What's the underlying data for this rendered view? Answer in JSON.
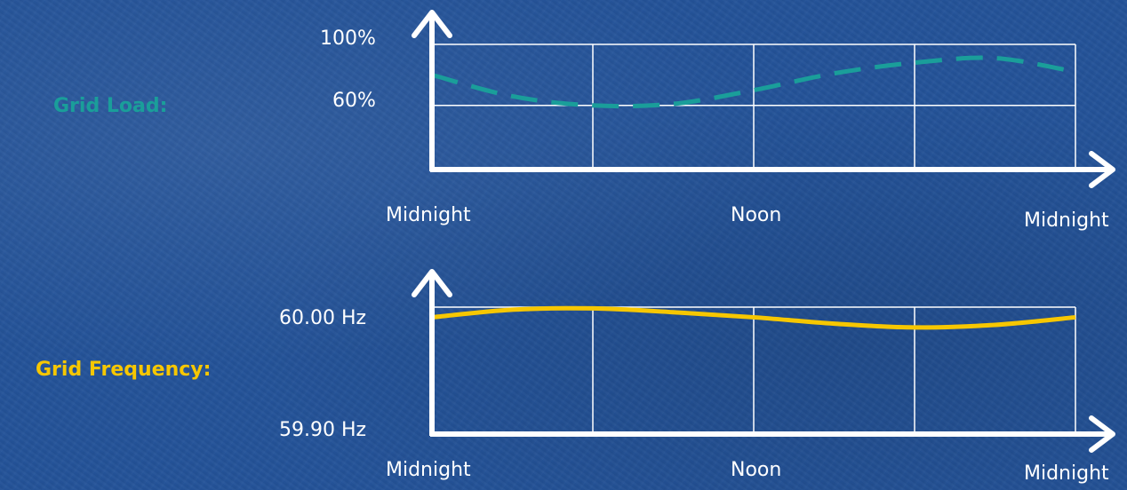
{
  "chart_data": [
    {
      "type": "line",
      "series": [
        {
          "name": "Grid Load:",
          "color": "#1a9e9a",
          "style": "dashed",
          "x": [
            0,
            3,
            6,
            9,
            12,
            15,
            18,
            21,
            24
          ],
          "values": [
            0.8,
            0.66,
            0.6,
            0.61,
            0.7,
            0.81,
            0.88,
            0.91,
            0.82
          ]
        }
      ],
      "yticks": [
        {
          "value": 1.0,
          "label": "100%"
        },
        {
          "value": 0.6,
          "label": "60%"
        }
      ],
      "xticks": [
        {
          "value": 0,
          "label": "Midnight"
        },
        {
          "value": 12,
          "label": "Noon"
        },
        {
          "value": 24,
          "label": "Midnight"
        }
      ],
      "ylim": [
        0.18,
        1.0
      ],
      "xlim": [
        0,
        24
      ],
      "grid": true,
      "vgrid_x": [
        0,
        6,
        12,
        18,
        24
      ]
    },
    {
      "type": "line",
      "series": [
        {
          "name": "Grid Frequency:",
          "color": "#f7c700",
          "style": "solid",
          "x": [
            0,
            3,
            6,
            9,
            12,
            15,
            18,
            21,
            24
          ],
          "values": [
            59.992,
            59.998,
            59.999,
            59.996,
            59.992,
            59.987,
            59.984,
            59.986,
            59.992
          ]
        }
      ],
      "yticks": [
        {
          "value": 60.0,
          "label": "60.00 Hz"
        },
        {
          "value": 59.9,
          "label": "59.90 Hz"
        }
      ],
      "xticks": [
        {
          "value": 0,
          "label": "Midnight"
        },
        {
          "value": 12,
          "label": "Noon"
        },
        {
          "value": 24,
          "label": "Midnight"
        }
      ],
      "ylim": [
        59.9,
        60.0
      ],
      "xlim": [
        0,
        24
      ],
      "grid": true,
      "vgrid_x": [
        0,
        6,
        12,
        18,
        24
      ]
    }
  ]
}
